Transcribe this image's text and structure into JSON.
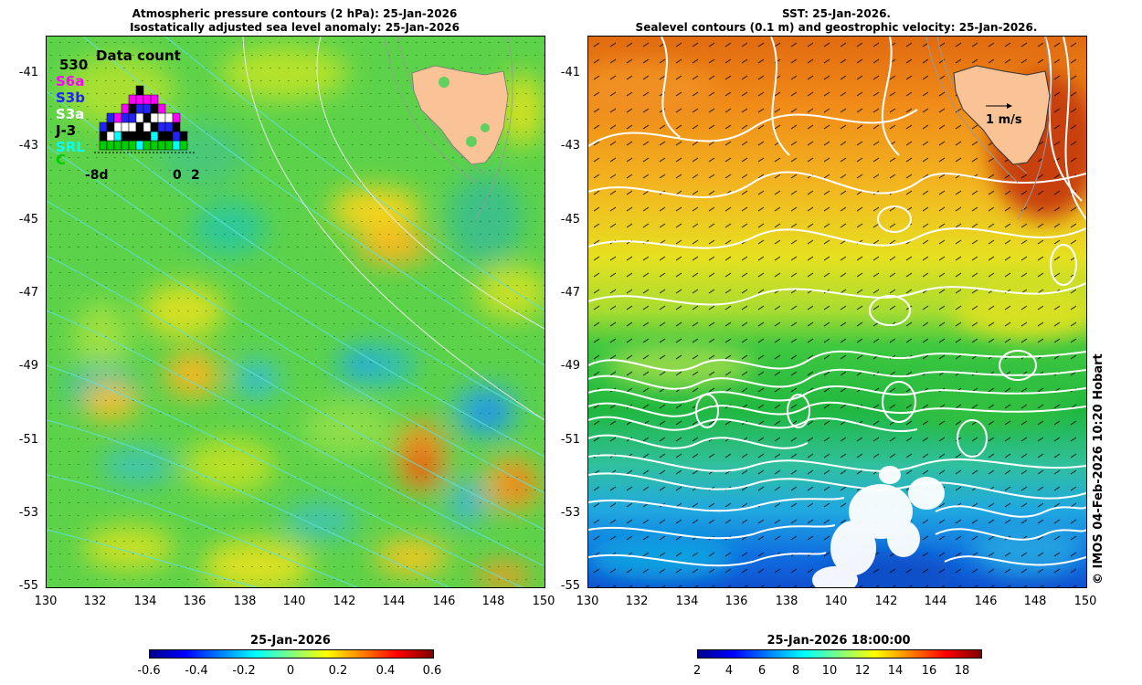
{
  "left_panel": {
    "title_line1": "Atmospheric pressure contours (2 hPa): 25-Jan-2026",
    "title_line2": "Isostatically adjusted sea level anomaly: 25-Jan-2026",
    "y_ticks": [
      "-41",
      "-43",
      "-45",
      "-47",
      "-49",
      "-51",
      "-53",
      "-55"
    ],
    "x_ticks": [
      "130",
      "132",
      "134",
      "136",
      "138",
      "140",
      "142",
      "144",
      "146",
      "148",
      "150"
    ],
    "inset": {
      "title": "Data count",
      "max_count": "530",
      "missions": [
        {
          "label": "S6a",
          "color": "#ff00ff"
        },
        {
          "label": "S3b",
          "color": "#2222ff"
        },
        {
          "label": "S3a",
          "color": "#ffffff"
        },
        {
          "label": "J-3",
          "color": "#000000"
        },
        {
          "label": "SRL",
          "color": "#00ffff"
        },
        {
          "label": "C",
          "color": "#00cc00"
        }
      ],
      "x_labels": [
        "-8d",
        "0",
        "2"
      ]
    },
    "colorbar": {
      "title": "25-Jan-2026",
      "labels": [
        "-0.6",
        "-0.4",
        "-0.2",
        "0",
        "0.2",
        "0.4",
        "0.6"
      ],
      "colors": [
        "#00008f",
        "#0000ff",
        "#0080ff",
        "#00ffff",
        "#80ff80",
        "#ffff00",
        "#ff8000",
        "#ff0000",
        "#800000"
      ]
    }
  },
  "right_panel": {
    "title_line1": "SST: 25-Jan-2026.",
    "title_line2": "Sealevel contours (0.1 m) and geostrophic velocity: 25-Jan-2026.",
    "y_ticks": [
      "-41",
      "-43",
      "-45",
      "-47",
      "-49",
      "-51",
      "-53",
      "-55"
    ],
    "x_ticks": [
      "130",
      "132",
      "134",
      "136",
      "138",
      "140",
      "142",
      "144",
      "146",
      "148",
      "150"
    ],
    "velocity_scale_label": "1 m/s",
    "colorbar": {
      "title": "25-Jan-2026 18:00:00",
      "labels": [
        "2",
        "4",
        "6",
        "8",
        "10",
        "12",
        "14",
        "16",
        "18"
      ],
      "colors": [
        "#00008f",
        "#0000ff",
        "#0080ff",
        "#00ffff",
        "#80ff80",
        "#ffff00",
        "#ff8000",
        "#ff0000",
        "#800000"
      ]
    }
  },
  "credit": "© IMOS 04-Feb-2026 10:20 Hobart",
  "colors": {
    "land": "#f9c396",
    "contour_white": "#ffffff",
    "contour_grey": "#999999"
  }
}
